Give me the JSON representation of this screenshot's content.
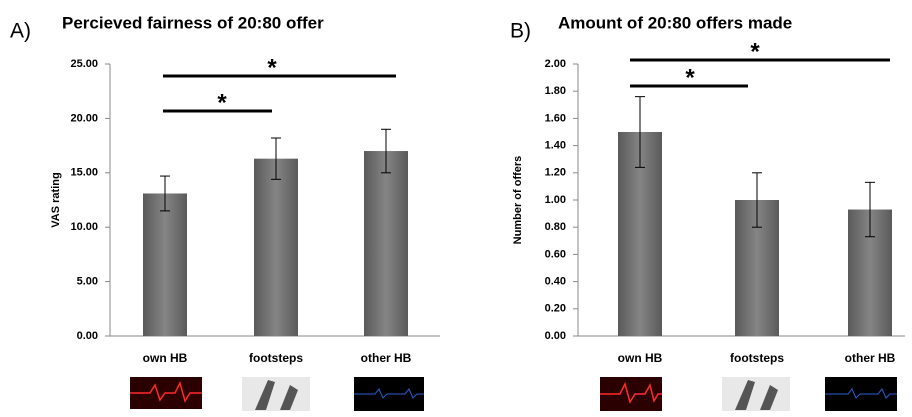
{
  "chart_data": [
    {
      "type": "bar",
      "panel": "A)",
      "title": "Percieved fairness of 20:80 offer",
      "ylabel": "VAS rating",
      "categories": [
        "own HB",
        "footsteps",
        "other HB"
      ],
      "values": [
        13.1,
        16.3,
        17.0
      ],
      "errors": [
        1.6,
        1.9,
        2.0
      ],
      "color": "#707070",
      "ylim": [
        0,
        25
      ],
      "yticks": [
        {
          "value": 0,
          "label": "0.00"
        },
        {
          "value": 5,
          "label": "5.00"
        },
        {
          "value": 10,
          "label": "10.00"
        },
        {
          "value": 15,
          "label": "15.00"
        },
        {
          "value": 20,
          "label": "20.00"
        },
        {
          "value": 25,
          "label": "25.00"
        }
      ],
      "annotations": [
        "*",
        "*"
      ]
    },
    {
      "type": "bar",
      "panel": "B)",
      "title": "Amount of 20:80 offers made",
      "ylabel": "Number of offers",
      "categories": [
        "own HB",
        "footsteps",
        "other HB"
      ],
      "values": [
        1.5,
        1.0,
        0.93
      ],
      "errors": [
        0.26,
        0.2,
        0.2
      ],
      "color": "#707070",
      "ylim": [
        0,
        2
      ],
      "yticks": [
        {
          "value": 0,
          "label": "0.00"
        },
        {
          "value": 0.2,
          "label": "0.20"
        },
        {
          "value": 0.4,
          "label": "0.40"
        },
        {
          "value": 0.6,
          "label": "0.60"
        },
        {
          "value": 0.8,
          "label": "0.80"
        },
        {
          "value": 1,
          "label": "1.00"
        },
        {
          "value": 1.2,
          "label": "1.20"
        },
        {
          "value": 1.4,
          "label": "1.40"
        },
        {
          "value": 1.6,
          "label": "1.60"
        },
        {
          "value": 1.8,
          "label": "1.80"
        },
        {
          "value": 2,
          "label": "2.00"
        }
      ],
      "annotations": [
        "*",
        "*"
      ]
    }
  ]
}
